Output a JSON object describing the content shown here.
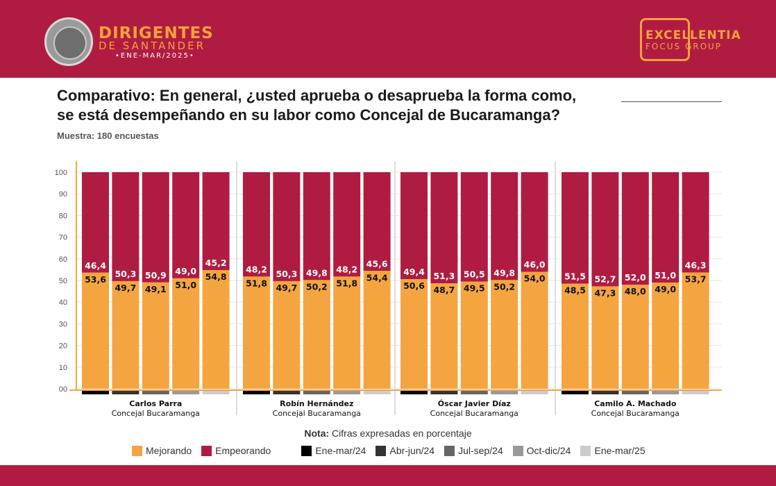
{
  "brand": {
    "title": "DIRIGENTES",
    "subtitle": "DE SANTANDER",
    "period": "•ENE-MAR/2025•"
  },
  "logo": {
    "line1": "EXCELLENTIA",
    "line2": "FOCUS GROUP"
  },
  "title_line1": "Comparativo: En general, ¿usted aprueba o desaprueba la forma como,",
  "title_line2": "se está desempeñando en su labor como Concejal de Bucaramanga?",
  "sample": "Muestra: 180 encuestas",
  "nota_label": "Nota:",
  "nota_text": "Cifras expresadas en porcentaje",
  "colors": {
    "header": "#b01c41",
    "mejorando": "#f5a540",
    "empeorando": "#b01c41"
  },
  "legend": {
    "series": [
      {
        "label": "Mejorando",
        "color": "#f5a540"
      },
      {
        "label": "Empeorando",
        "color": "#b01c41"
      }
    ],
    "periods": [
      {
        "label": "Ene-mar/24",
        "color": "#000000"
      },
      {
        "label": "Abr-jun/24",
        "color": "#333333"
      },
      {
        "label": "Jul-sep/24",
        "color": "#666666"
      },
      {
        "label": "Oct-dic/24",
        "color": "#999999"
      },
      {
        "label": "Ene-mar/25",
        "color": "#cccccc"
      }
    ]
  },
  "chart_data": {
    "type": "bar",
    "stacked": true,
    "ylim": [
      0,
      100
    ],
    "yticks": [
      "00",
      "10",
      "20",
      "30",
      "40",
      "50",
      "60",
      "70",
      "80",
      "90",
      "100"
    ],
    "groups": [
      {
        "name": "Carlos Parra",
        "role": "Concejal Bucaramanga",
        "mejorando": [
          "53,6",
          "49,7",
          "49,1",
          "51,0",
          "54,8"
        ],
        "empeorando": [
          "46,4",
          "50,3",
          "50,9",
          "49,0",
          "45,2"
        ]
      },
      {
        "name": "Robín Hernández",
        "role": "Concejal Bucaramanga",
        "mejorando": [
          "51,8",
          "49,7",
          "50,2",
          "51,8",
          "54,4"
        ],
        "empeorando": [
          "48,2",
          "50,3",
          "49,8",
          "48,2",
          "45,6"
        ]
      },
      {
        "name": "Óscar Javier Díaz",
        "role": "Concejal Bucaramanga",
        "mejorando": [
          "50,6",
          "48,7",
          "49,5",
          "50,2",
          "54,0"
        ],
        "empeorando": [
          "49,4",
          "51,3",
          "50,5",
          "49,8",
          "46,0"
        ]
      },
      {
        "name": "Camilo A. Machado",
        "role": "Concejal Bucaramanga",
        "mejorando": [
          "48,5",
          "47,3",
          "48,0",
          "49,0",
          "53,7"
        ],
        "empeorando": [
          "51,5",
          "52,7",
          "52,0",
          "51,0",
          "46,3"
        ]
      }
    ]
  }
}
